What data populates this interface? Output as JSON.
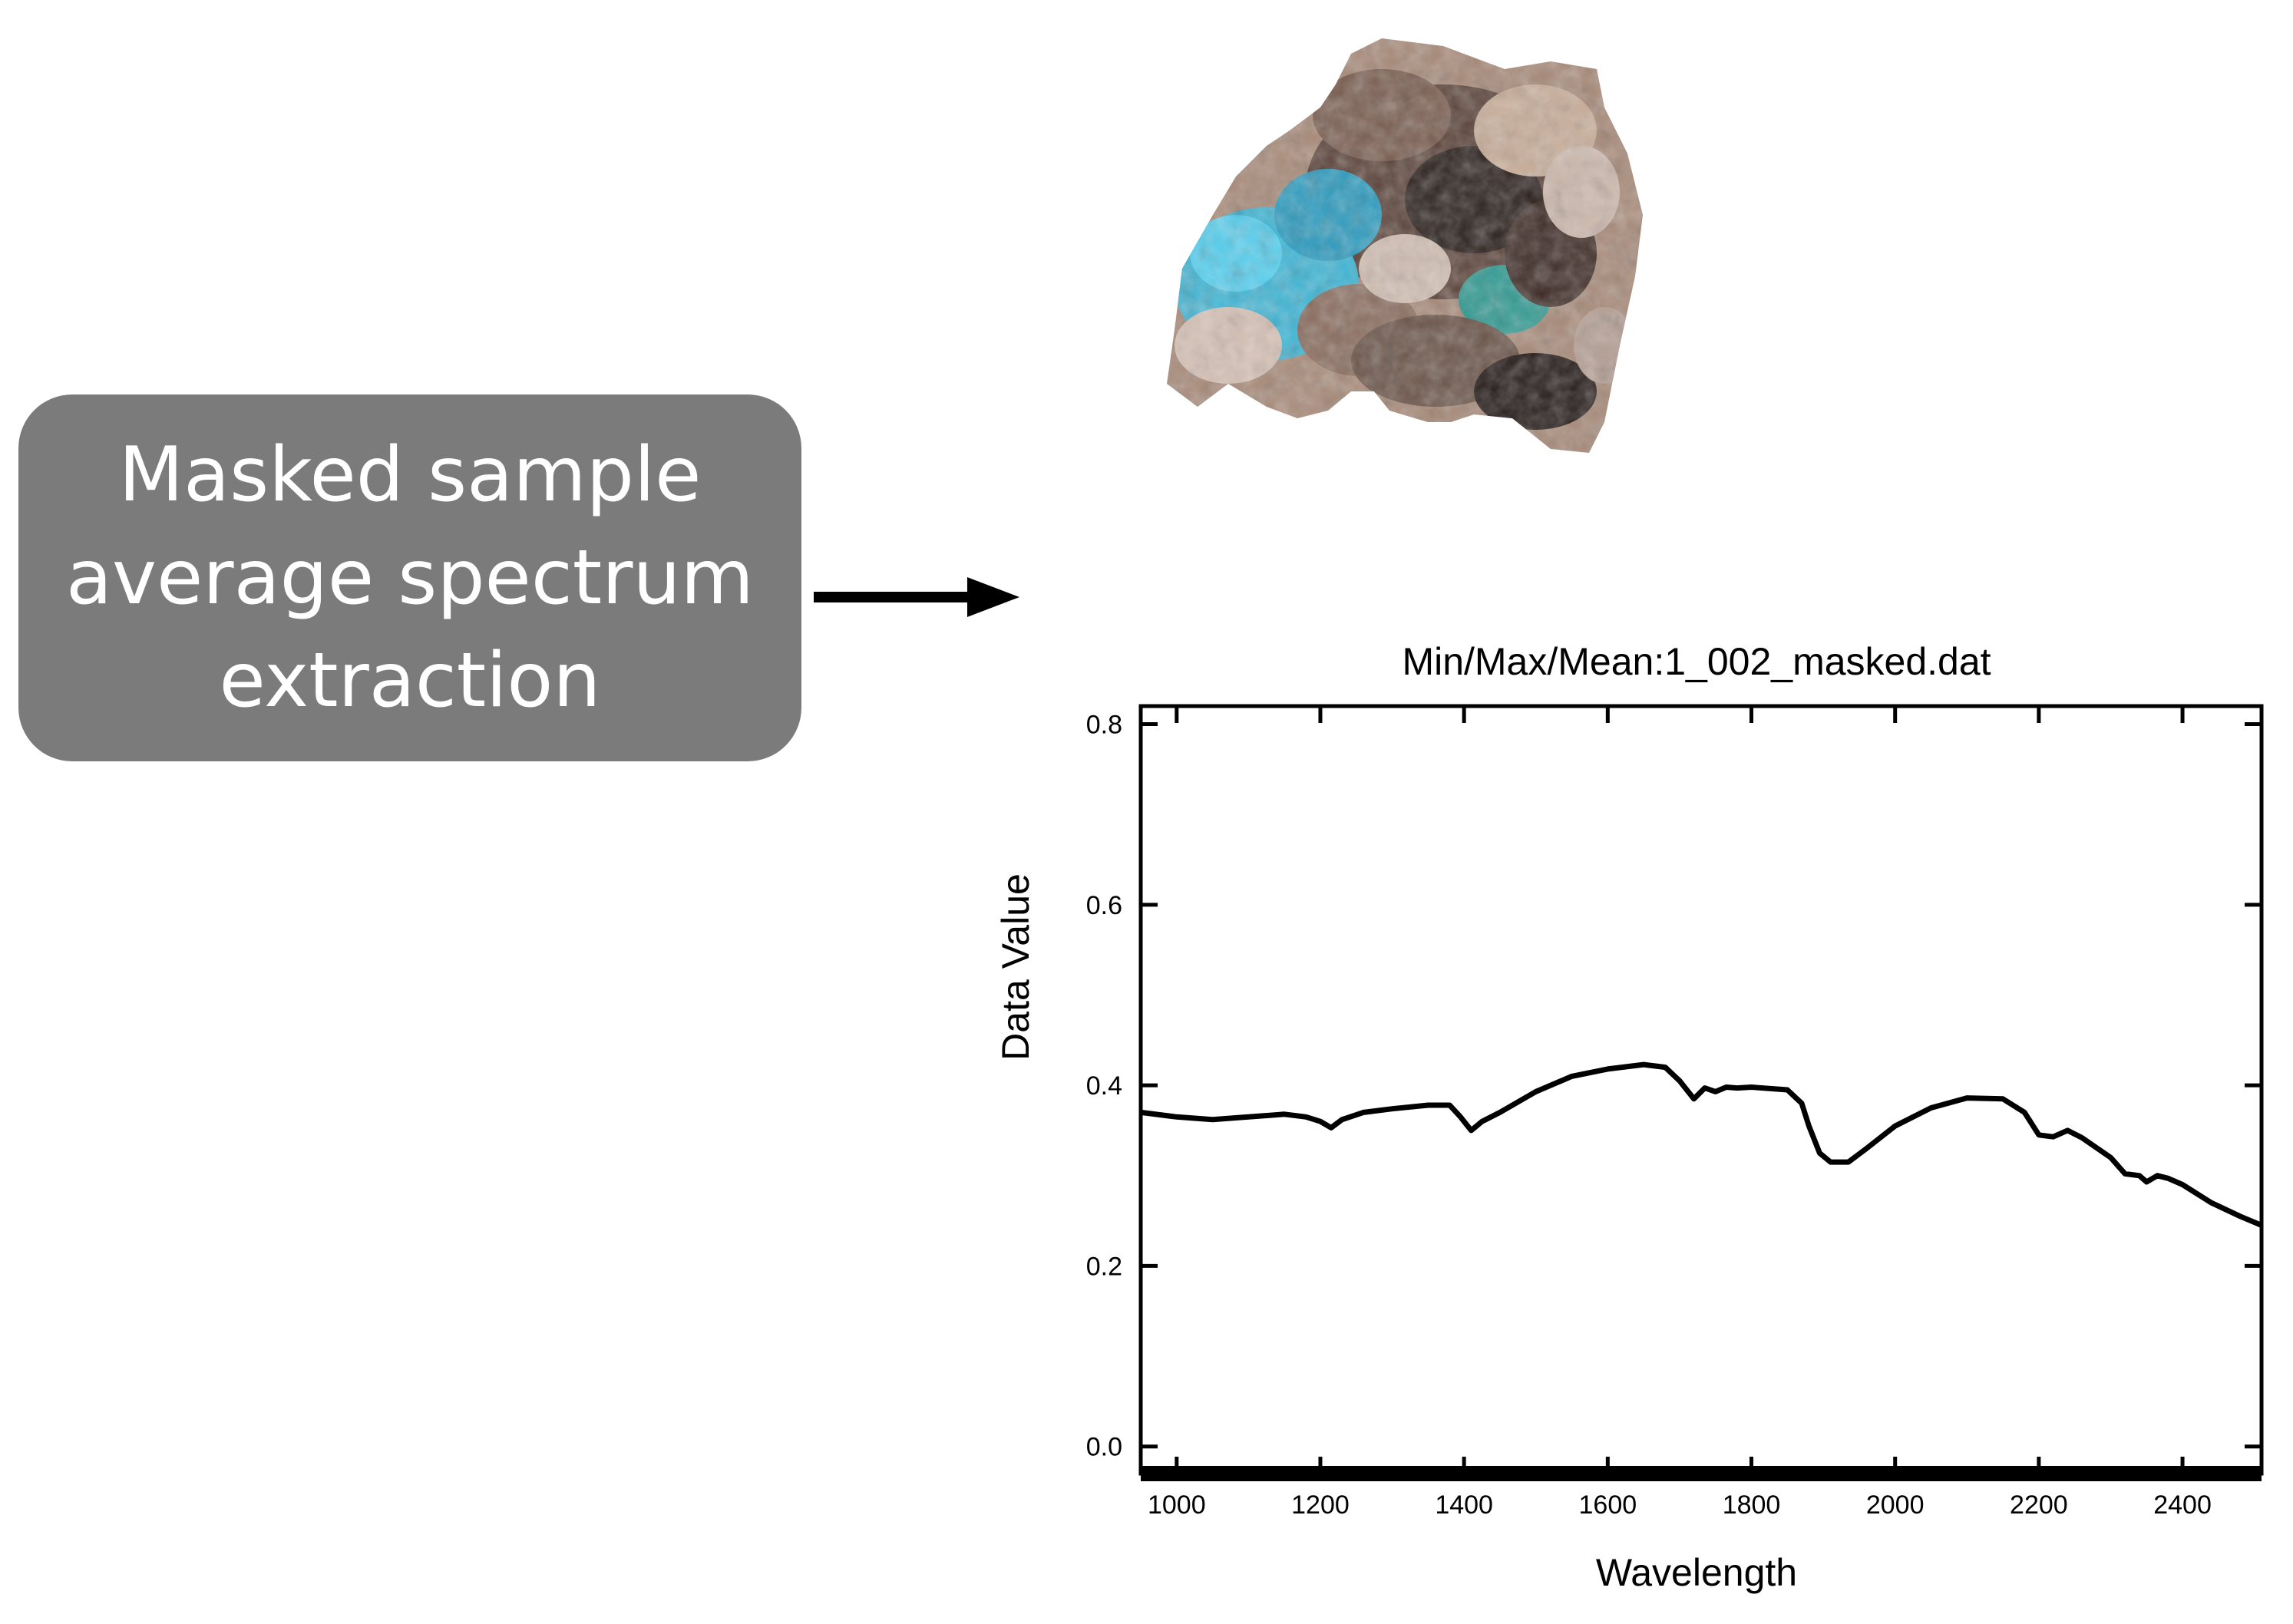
{
  "process_box": {
    "lines": [
      "Masked sample",
      "average spectrum",
      "extraction"
    ]
  },
  "arrow": {
    "icon": "right-arrow-icon",
    "color": "#000000"
  },
  "sample_image": {
    "icon": "rock-sample-image"
  },
  "chart_data": {
    "type": "line",
    "title": "Min/Max/Mean:1_002_masked.dat",
    "xlabel": "Wavelength",
    "ylabel": "Data Value",
    "xlim": [
      950,
      2510
    ],
    "ylim": [
      -0.03,
      0.82
    ],
    "x_ticks": [
      1000,
      1200,
      1400,
      1600,
      1800,
      2000,
      2200,
      2400
    ],
    "x_tick_labels": [
      "1000",
      "1200",
      "1400",
      "1600",
      "1800",
      "2000",
      "2200",
      "2400"
    ],
    "y_ticks": [
      0.0,
      0.2,
      0.4,
      0.6,
      0.8
    ],
    "y_tick_labels": [
      "0.0",
      "0.2",
      "0.4",
      "0.6",
      "0.8"
    ],
    "grid": false,
    "line_color": "#000000",
    "series": [
      {
        "x": [
          950,
          1000,
          1050,
          1100,
          1150,
          1180,
          1200,
          1215,
          1230,
          1260,
          1300,
          1350,
          1380,
          1395,
          1410,
          1425,
          1450,
          1500,
          1550,
          1600,
          1650,
          1680,
          1700,
          1720,
          1735,
          1750,
          1765,
          1780,
          1800,
          1850,
          1870,
          1880,
          1895,
          1910,
          1935,
          1960,
          2000,
          2050,
          2100,
          2150,
          2180,
          2200,
          2220,
          2240,
          2260,
          2300,
          2320,
          2340,
          2350,
          2365,
          2380,
          2400,
          2440,
          2480,
          2510
        ],
        "y": [
          0.37,
          0.365,
          0.362,
          0.365,
          0.368,
          0.365,
          0.36,
          0.353,
          0.362,
          0.37,
          0.374,
          0.378,
          0.378,
          0.365,
          0.35,
          0.36,
          0.37,
          0.393,
          0.41,
          0.418,
          0.423,
          0.42,
          0.405,
          0.385,
          0.397,
          0.393,
          0.398,
          0.397,
          0.398,
          0.395,
          0.38,
          0.355,
          0.325,
          0.315,
          0.315,
          0.33,
          0.355,
          0.375,
          0.386,
          0.385,
          0.37,
          0.345,
          0.343,
          0.35,
          0.342,
          0.32,
          0.302,
          0.3,
          0.293,
          0.3,
          0.297,
          0.29,
          0.27,
          0.255,
          0.245
        ]
      }
    ]
  }
}
